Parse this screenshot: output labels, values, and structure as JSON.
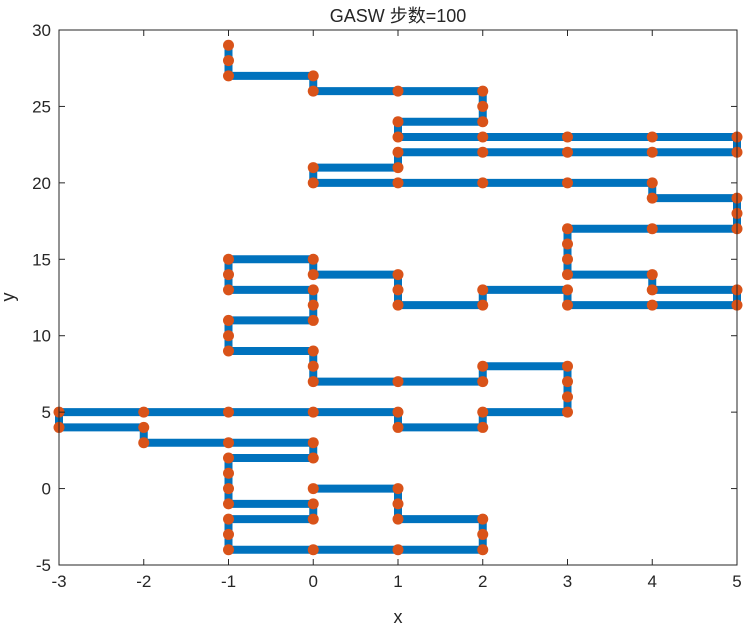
{
  "chart_data": {
    "type": "line",
    "title": "GASW 步数=100",
    "xlabel": "x",
    "ylabel": "y",
    "xlim": [
      -3,
      5
    ],
    "ylim": [
      -5,
      30
    ],
    "xticks": [
      -3,
      -2,
      -1,
      0,
      1,
      2,
      3,
      4,
      5
    ],
    "yticks": [
      -5,
      0,
      5,
      10,
      15,
      20,
      25,
      30
    ],
    "grid": false,
    "line_color": "#0072BD",
    "marker_color": "#D95319",
    "series": [
      {
        "points": [
          [
            -1,
            29
          ],
          [
            -1,
            28
          ],
          [
            -1,
            27
          ],
          [
            0,
            27
          ],
          [
            0,
            26
          ],
          [
            1,
            26
          ],
          [
            2,
            26
          ],
          [
            2,
            25
          ],
          [
            2,
            24
          ],
          [
            1,
            24
          ],
          [
            1,
            23
          ],
          [
            2,
            23
          ],
          [
            3,
            23
          ],
          [
            4,
            23
          ],
          [
            5,
            23
          ],
          [
            5,
            22
          ],
          [
            4,
            22
          ],
          [
            3,
            22
          ],
          [
            2,
            22
          ],
          [
            1,
            22
          ],
          [
            1,
            21
          ],
          [
            0,
            21
          ],
          [
            0,
            20
          ],
          [
            1,
            20
          ],
          [
            2,
            20
          ],
          [
            3,
            20
          ],
          [
            4,
            20
          ],
          [
            4,
            19
          ],
          [
            5,
            19
          ],
          [
            5,
            18
          ],
          [
            5,
            17
          ],
          [
            4,
            17
          ],
          [
            3,
            17
          ],
          [
            3,
            16
          ],
          [
            3,
            15
          ],
          [
            3,
            14
          ],
          [
            4,
            14
          ],
          [
            4,
            13
          ],
          [
            5,
            13
          ],
          [
            5,
            12
          ],
          [
            4,
            12
          ],
          [
            3,
            12
          ],
          [
            3,
            13
          ],
          [
            2,
            13
          ],
          [
            2,
            12
          ],
          [
            1,
            12
          ],
          [
            1,
            13
          ],
          [
            1,
            14
          ],
          [
            0,
            14
          ],
          [
            0,
            15
          ],
          [
            -1,
            15
          ],
          [
            -1,
            14
          ],
          [
            -1,
            13
          ],
          [
            0,
            13
          ],
          [
            0,
            12
          ],
          [
            0,
            11
          ],
          [
            -1,
            11
          ],
          [
            -1,
            10
          ],
          [
            -1,
            9
          ],
          [
            0,
            9
          ],
          [
            0,
            8
          ],
          [
            0,
            7
          ],
          [
            1,
            7
          ],
          [
            2,
            7
          ],
          [
            2,
            8
          ],
          [
            3,
            8
          ],
          [
            3,
            7
          ],
          [
            3,
            6
          ],
          [
            3,
            5
          ],
          [
            2,
            5
          ],
          [
            2,
            4
          ],
          [
            1,
            4
          ],
          [
            1,
            5
          ],
          [
            0,
            5
          ],
          [
            -1,
            5
          ],
          [
            -2,
            5
          ],
          [
            -3,
            5
          ],
          [
            -3,
            4
          ],
          [
            -2,
            4
          ],
          [
            -2,
            3
          ],
          [
            -1,
            3
          ],
          [
            0,
            3
          ],
          [
            0,
            2
          ],
          [
            -1,
            2
          ],
          [
            -1,
            1
          ],
          [
            -1,
            0
          ],
          [
            -1,
            -1
          ],
          [
            0,
            -1
          ],
          [
            0,
            -2
          ],
          [
            -1,
            -2
          ],
          [
            -1,
            -3
          ],
          [
            -1,
            -4
          ],
          [
            0,
            -4
          ],
          [
            1,
            -4
          ],
          [
            2,
            -4
          ],
          [
            2,
            -3
          ],
          [
            2,
            -2
          ],
          [
            1,
            -2
          ],
          [
            1,
            -1
          ],
          [
            1,
            0
          ],
          [
            0,
            0
          ]
        ]
      }
    ]
  }
}
